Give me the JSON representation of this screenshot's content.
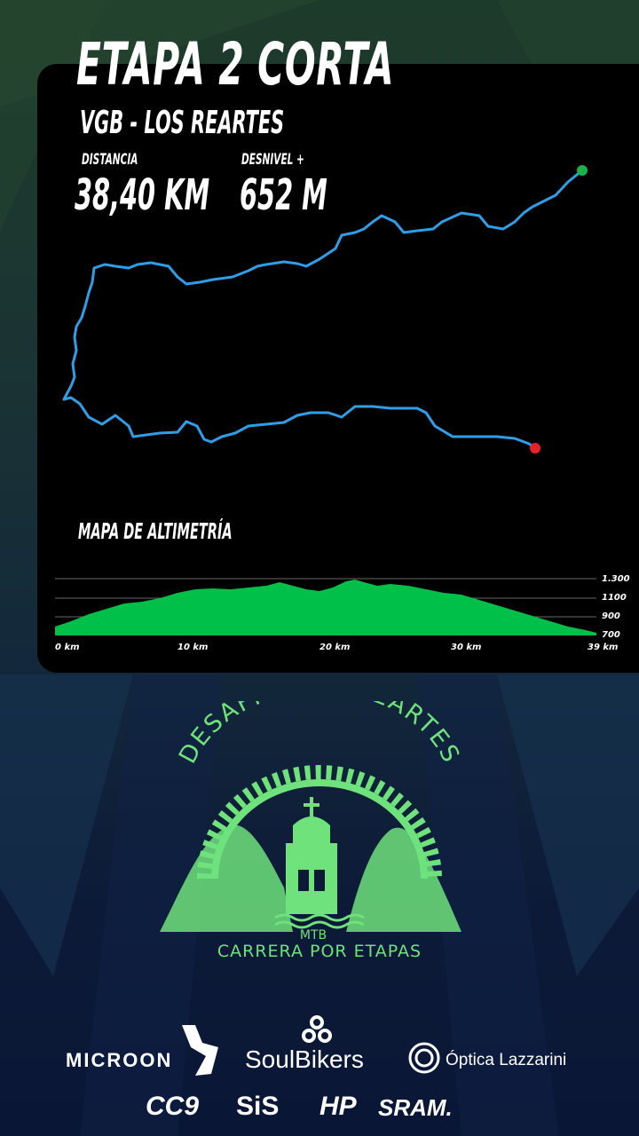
{
  "stage": {
    "title": "ETAPA 2 CORTA",
    "route": "VGB - LOS REARTES",
    "distance_label": "DISTANCIA",
    "distance_value": "38,40 KM",
    "elevation_label": "DESNIVEL +",
    "elevation_value": "652 M"
  },
  "profile": {
    "title": "MAPA DE ALTIMETRÍA",
    "y_ticks": [
      "1.300",
      "1100",
      "900",
      "700"
    ],
    "x_ticks": [
      "0 km",
      "10 km",
      "20 km",
      "30 km",
      "39 km"
    ]
  },
  "colors": {
    "route_line": "#2f9ee6",
    "start_marker": "#1bb04a",
    "end_marker": "#e8202a",
    "profile_fill": "#00c04a",
    "logo_green": "#6fe27c"
  },
  "logo": {
    "top_text": "DESAFIO LOS REARTES",
    "small_text": "MTB",
    "bottom_text": "CARRERA POR ETAPAS"
  },
  "sponsors": {
    "microon": "MICROON",
    "soulbikers": "SoulBikers",
    "optica": "Óptica Lazzarini",
    "cc9": "CC9",
    "sis": "SiS",
    "hp": "HP",
    "sram": "SRAM."
  }
}
